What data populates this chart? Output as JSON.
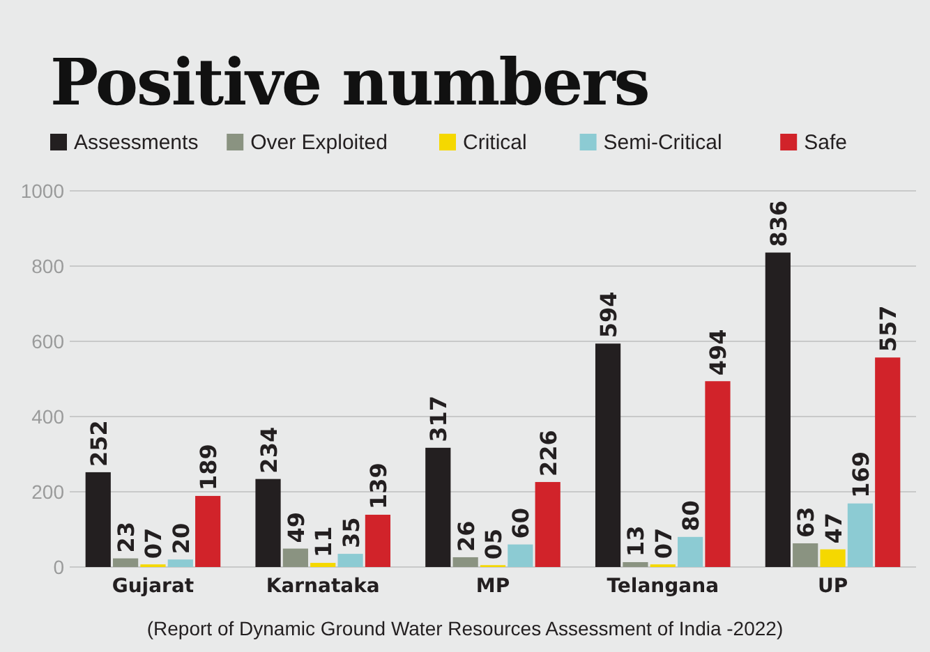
{
  "chart_data": {
    "type": "bar",
    "title": "Positive numbers",
    "categories": [
      "Gujarat",
      "Karnataka",
      "MP",
      "Telangana",
      "UP"
    ],
    "series": [
      {
        "name": "Assessments",
        "color": "#231f20",
        "values": [
          252,
          234,
          317,
          594,
          836
        ],
        "value_labels": [
          "252",
          "234",
          "317",
          "594",
          "836"
        ]
      },
      {
        "name": "Over Exploited",
        "color": "#8a9381",
        "values": [
          23,
          49,
          26,
          13,
          63
        ],
        "value_labels": [
          "23",
          "49",
          "26",
          "13",
          "63"
        ]
      },
      {
        "name": "Critical",
        "color": "#f5d800",
        "values": [
          7,
          11,
          5,
          7,
          47
        ],
        "value_labels": [
          "07",
          "11",
          "05",
          "07",
          "47"
        ]
      },
      {
        "name": "Semi-Critical",
        "color": "#8ccbd3",
        "values": [
          20,
          35,
          60,
          80,
          169
        ],
        "value_labels": [
          "20",
          "35",
          "60",
          "80",
          "169"
        ]
      },
      {
        "name": "Safe",
        "color": "#d1232a",
        "values": [
          189,
          139,
          226,
          494,
          557
        ],
        "value_labels": [
          "189",
          "139",
          "226",
          "494",
          "557"
        ]
      }
    ],
    "ylim": [
      0,
      1000
    ],
    "yticks": [
      0,
      200,
      400,
      600,
      800,
      1000
    ],
    "grid": "y",
    "legend": "top",
    "annotations": [
      "(Report of Dynamic Ground Water Resources Assessment of India -2022)"
    ]
  }
}
